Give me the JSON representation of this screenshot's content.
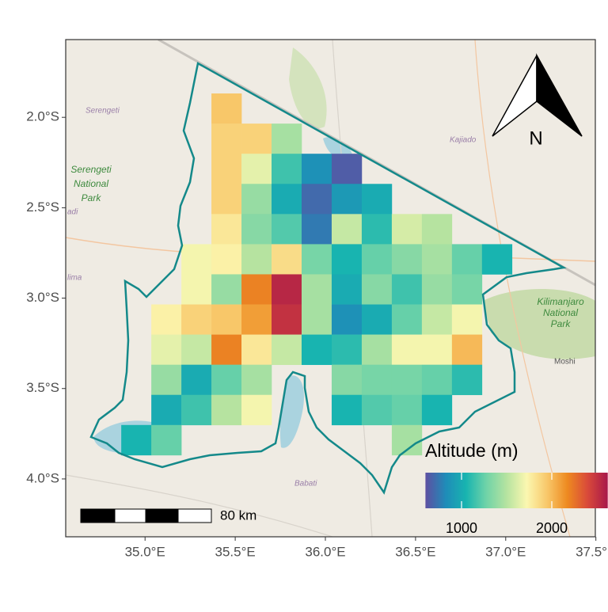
{
  "map": {
    "xlim": [
      34.56,
      37.497
    ],
    "ylim": [
      -4.32,
      -1.57
    ],
    "xticks": [
      {
        "value": 35.0,
        "label": "35.0°E"
      },
      {
        "value": 35.5,
        "label": "35.5°E"
      },
      {
        "value": 36.0,
        "label": "36.0°E"
      },
      {
        "value": 36.5,
        "label": "36.5°E"
      },
      {
        "value": 37.0,
        "label": "37.0°E"
      },
      {
        "value": 37.5,
        "label": "37.5°E"
      }
    ],
    "yticks": [
      {
        "value": -2.0,
        "label": "2.0°S"
      },
      {
        "value": -2.5,
        "label": "2.5°S"
      },
      {
        "value": -3.0,
        "label": "3.0°S"
      },
      {
        "value": -3.5,
        "label": "3.5°S"
      },
      {
        "value": -4.0,
        "label": "4.0°S"
      }
    ]
  },
  "raster": {
    "lon0": 34.868,
    "lat0": -1.868,
    "cell": 0.1667,
    "values": [
      [
        null,
        null,
        null,
        1950,
        null,
        null,
        null,
        null,
        null,
        null,
        null,
        null,
        null
      ],
      [
        null,
        null,
        null,
        1900,
        1900,
        1450,
        null,
        null,
        null,
        null,
        null,
        null,
        null
      ],
      [
        null,
        null,
        null,
        1900,
        1650,
        1150,
        850,
        650,
        null,
        null,
        null,
        null,
        null
      ],
      [
        null,
        null,
        null,
        1900,
        1400,
        1000,
        700,
        900,
        1000,
        null,
        null,
        null,
        null
      ],
      [
        null,
        null,
        null,
        1800,
        1350,
        1200,
        760,
        1550,
        1100,
        1600,
        1500,
        null,
        null
      ],
      [
        null,
        null,
        1700,
        1750,
        1500,
        1850,
        1300,
        1050,
        1250,
        1350,
        1450,
        1250,
        1050
      ],
      [
        null,
        null,
        1700,
        1400,
        2200,
        2550,
        1450,
        1000,
        1350,
        1150,
        1400,
        1300,
        null
      ],
      [
        null,
        1750,
        1900,
        1950,
        2100,
        2500,
        1450,
        850,
        1000,
        1250,
        1550,
        1700,
        null
      ],
      [
        null,
        1650,
        1550,
        2200,
        1800,
        1550,
        1050,
        1100,
        1450,
        1700,
        1700,
        2000,
        null
      ],
      [
        null,
        1400,
        1000,
        1250,
        1450,
        null,
        null,
        1350,
        1300,
        1300,
        1250,
        1100,
        null
      ],
      [
        null,
        1000,
        1150,
        1500,
        1700,
        null,
        null,
        1050,
        1200,
        1250,
        1050,
        null,
        null
      ],
      [
        1050,
        1250,
        null,
        null,
        null,
        null,
        null,
        null,
        null,
        1450,
        null,
        null,
        null
      ]
    ]
  },
  "legend": {
    "title": "Altitude (m)",
    "limits": [
      600,
      2620
    ],
    "ticks": [
      1000,
      2000
    ],
    "colors": [
      "#5e4fa2",
      "#1f8cb8",
      "#18b4b0",
      "#6fd3a8",
      "#b5e3a0",
      "#fbf7b0",
      "#f8c86a",
      "#ee8a20",
      "#d94a3a",
      "#a8174a"
    ]
  },
  "scale_bar": {
    "label": "80 km"
  },
  "north_arrow": {
    "label": "N"
  },
  "basemap_labels": [
    {
      "lines": [
        "Serengeti"
      ]
    },
    {
      "lines": [
        "Serengeti",
        "National",
        "Park"
      ]
    },
    {
      "lines": [
        "adi"
      ]
    },
    {
      "lines": [
        "lima"
      ]
    },
    {
      "lines": [
        "Kajiado"
      ]
    },
    {
      "lines": [
        "Kilimanjaro",
        "National",
        "Park"
      ]
    },
    {
      "lines": [
        "Moshi"
      ]
    },
    {
      "lines": [
        "Babati"
      ]
    }
  ]
}
